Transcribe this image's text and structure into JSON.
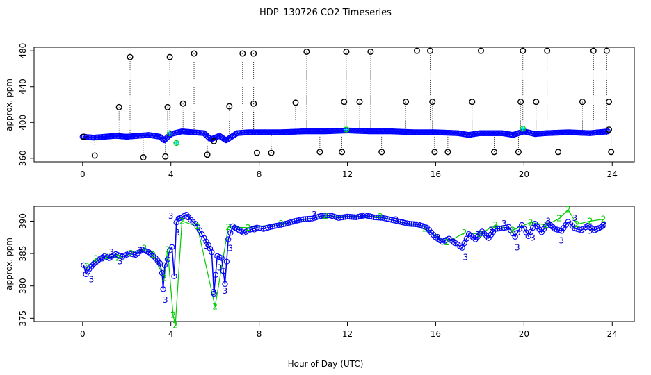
{
  "title": "HDP_130726  CO2 Timeseries",
  "xlabel": "Hour of Day (UTC)",
  "colors": {
    "ch1": "#0000ff",
    "ch2": "#00cc00",
    "ch3": "#0000cc",
    "flag": "#00e5ee",
    "ink": "#000000"
  },
  "chart_data": [
    {
      "type": "scatter",
      "panel": "top",
      "ylabel": "approx. ppm",
      "xlim": [
        -2.2,
        25.0
      ],
      "ylim": [
        356,
        484
      ],
      "xticks": [
        0,
        4,
        8,
        12,
        16,
        20,
        24
      ],
      "yticks": [
        360,
        400,
        440,
        480
      ],
      "series": [
        {
          "name": "raw_outliers",
          "marker": "open-circle",
          "color": "#000000",
          "points": [
            [
              0.05,
              384
            ],
            [
              0.55,
              363
            ],
            [
              1.65,
              417
            ],
            [
              2.15,
              473
            ],
            [
              2.75,
              361
            ],
            [
              3.75,
              362
            ],
            [
              3.85,
              417
            ],
            [
              3.95,
              473
            ],
            [
              4.55,
              421
            ],
            [
              5.05,
              477
            ],
            [
              5.65,
              364
            ],
            [
              5.95,
              379
            ],
            [
              6.65,
              418
            ],
            [
              7.25,
              477
            ],
            [
              7.75,
              477
            ],
            [
              7.75,
              421
            ],
            [
              7.9,
              366
            ],
            [
              8.55,
              366
            ],
            [
              9.65,
              422
            ],
            [
              10.15,
              479
            ],
            [
              10.75,
              367
            ],
            [
              11.75,
              367
            ],
            [
              11.85,
              423
            ],
            [
              11.95,
              479
            ],
            [
              12.55,
              423
            ],
            [
              13.05,
              479
            ],
            [
              13.55,
              367
            ],
            [
              14.65,
              423
            ],
            [
              15.15,
              480
            ],
            [
              15.75,
              480
            ],
            [
              15.85,
              423
            ],
            [
              15.95,
              367
            ],
            [
              16.55,
              367
            ],
            [
              17.65,
              423
            ],
            [
              18.05,
              480
            ],
            [
              18.65,
              367
            ],
            [
              19.75,
              367
            ],
            [
              19.85,
              423
            ],
            [
              19.95,
              480
            ],
            [
              20.55,
              423
            ],
            [
              21.05,
              480
            ],
            [
              21.55,
              367
            ],
            [
              22.65,
              423
            ],
            [
              23.15,
              480
            ],
            [
              23.75,
              480
            ],
            [
              23.85,
              423
            ],
            [
              23.95,
              367
            ],
            [
              23.85,
              392
            ]
          ]
        },
        {
          "name": "ch1",
          "color": "#0000ff",
          "x": [
            0.0,
            0.5,
            1.0,
            1.5,
            2.0,
            2.5,
            3.0,
            3.5,
            3.7,
            4.0,
            4.5,
            5.0,
            5.5,
            5.8,
            6.2,
            6.5,
            7.0,
            7.5,
            8.0,
            9.0,
            10.0,
            11.0,
            12.0,
            13.0,
            14.0,
            15.0,
            16.0,
            17.0,
            17.5,
            18.0,
            19.0,
            19.5,
            20.0,
            20.5,
            21.0,
            22.0,
            23.0,
            23.8
          ],
          "y": [
            384,
            383,
            384,
            385,
            384,
            385,
            386,
            384,
            380,
            387,
            390,
            389,
            388,
            381,
            385,
            380,
            388,
            389,
            389,
            389,
            390,
            390,
            391,
            390,
            390,
            389,
            389,
            388,
            386,
            388,
            388,
            386,
            390,
            387,
            388,
            389,
            388,
            390
          ]
        },
        {
          "name": "flagged",
          "color": "#00e5ee",
          "points": [
            [
              3.95,
              388
            ],
            [
              4.25,
              377
            ],
            [
              11.95,
              392
            ],
            [
              19.95,
              393
            ]
          ]
        }
      ]
    },
    {
      "type": "line",
      "panel": "bottom",
      "ylabel": "approx. ppm",
      "xlim": [
        -2.2,
        25.0
      ],
      "ylim": [
        374.5,
        392.3
      ],
      "xticks": [
        0,
        4,
        8,
        12,
        16,
        20,
        24
      ],
      "yticks": [
        375,
        380,
        385,
        390
      ],
      "series": [
        {
          "name": "1",
          "color": "#0000ff",
          "marker": "open-circle",
          "x": [
            0.05,
            0.15,
            0.3,
            0.5,
            0.8,
            1.0,
            1.2,
            1.5,
            1.8,
            2.1,
            2.4,
            2.7,
            3.0,
            3.3,
            3.5,
            3.6,
            3.65,
            3.72,
            3.85,
            3.95,
            4.05,
            4.15,
            4.25,
            4.35,
            4.5,
            4.7,
            4.9,
            5.1,
            5.3,
            5.5,
            5.7,
            5.85,
            5.95,
            6.1,
            6.3,
            6.45,
            6.6,
            6.8,
            7.0,
            7.3,
            7.6,
            7.9,
            8.2,
            8.5,
            8.8,
            9.2,
            9.6,
            10.0,
            10.4,
            10.8,
            11.2,
            11.6,
            12.0,
            12.4,
            12.8,
            13.2,
            13.6,
            14.0,
            14.4,
            14.8,
            15.2,
            15.6,
            16.0,
            16.3,
            16.6,
            16.9,
            17.2,
            17.5,
            17.8,
            18.1,
            18.4,
            18.7,
            19.0,
            19.3,
            19.6,
            19.9,
            20.2,
            20.5,
            20.8,
            21.1,
            21.4,
            21.7,
            22.0,
            22.3,
            22.6,
            22.9,
            23.2,
            23.5,
            23.7
          ],
          "y": [
            383.2,
            381.8,
            382.6,
            383.4,
            384.2,
            384.6,
            384.3,
            384.9,
            384.5,
            385.0,
            384.8,
            385.6,
            385.2,
            384.3,
            383.5,
            382.0,
            379.5,
            383.2,
            384.1,
            385.5,
            386.0,
            381.5,
            389.8,
            390.4,
            390.6,
            391.0,
            390.2,
            389.6,
            388.6,
            387.4,
            386.3,
            385.2,
            378.8,
            384.6,
            384.3,
            380.3,
            387.2,
            389.2,
            388.8,
            388.2,
            388.7,
            389.0,
            388.8,
            389.1,
            389.3,
            389.6,
            390.0,
            390.3,
            390.4,
            390.8,
            390.9,
            390.5,
            390.7,
            390.6,
            390.9,
            390.6,
            390.5,
            390.2,
            389.9,
            389.6,
            389.5,
            389.0,
            387.5,
            386.8,
            387.3,
            386.6,
            385.9,
            388.0,
            387.2,
            388.4,
            387.4,
            388.8,
            388.9,
            389.1,
            387.6,
            389.4,
            387.7,
            389.6,
            388.3,
            389.7,
            388.8,
            388.5,
            389.9,
            388.9,
            388.6,
            389.3,
            388.6,
            389.1,
            389.8
          ]
        },
        {
          "name": "2",
          "color": "#00cc00",
          "marker": "digit",
          "x": [
            0.2,
            0.6,
            1.1,
            1.6,
            2.2,
            2.8,
            3.2,
            3.7,
            3.85,
            4.1,
            4.2,
            4.5,
            5.2,
            6.0,
            6.6,
            7.5,
            9.0,
            11.0,
            13.5,
            15.5,
            16.5,
            17.3,
            18.0,
            18.7,
            19.5,
            20.3,
            21.0,
            21.6,
            22.0,
            22.4,
            23.0,
            23.6
          ],
          "y": [
            383.0,
            384.2,
            384.6,
            384.3,
            385.0,
            385.8,
            384.8,
            381.2,
            385.6,
            375.5,
            373.9,
            390.0,
            389.2,
            376.8,
            389.1,
            389.0,
            389.6,
            390.8,
            390.7,
            388.8,
            386.7,
            388.2,
            388.0,
            389.4,
            388.6,
            389.8,
            389.4,
            390.4,
            391.8,
            389.5,
            390.0,
            390.3
          ]
        },
        {
          "name": "3",
          "color": "#0000cc",
          "marker": "digit",
          "x": [
            0.1,
            0.4,
            0.9,
            1.3,
            1.7,
            2.6,
            3.4,
            3.75,
            4.0,
            4.3,
            4.8,
            5.6,
            5.95,
            6.2,
            6.45,
            6.7,
            7.8,
            10.5,
            12.6,
            14.2,
            16.1,
            16.8,
            17.35,
            17.9,
            18.5,
            19.1,
            19.7,
            20.4,
            21.1,
            21.7,
            22.3,
            23.0,
            23.6
          ],
          "y": [
            382.5,
            381.0,
            384.2,
            385.2,
            383.8,
            385.5,
            383.3,
            377.8,
            390.8,
            388.2,
            390.6,
            386.2,
            379.0,
            382.8,
            379.2,
            385.8,
            388.7,
            391.0,
            390.8,
            390.2,
            387.5,
            386.8,
            384.4,
            387.9,
            388.6,
            389.6,
            385.9,
            387.4,
            390.0,
            387.0,
            390.5,
            388.5,
            389.3
          ]
        }
      ]
    }
  ]
}
